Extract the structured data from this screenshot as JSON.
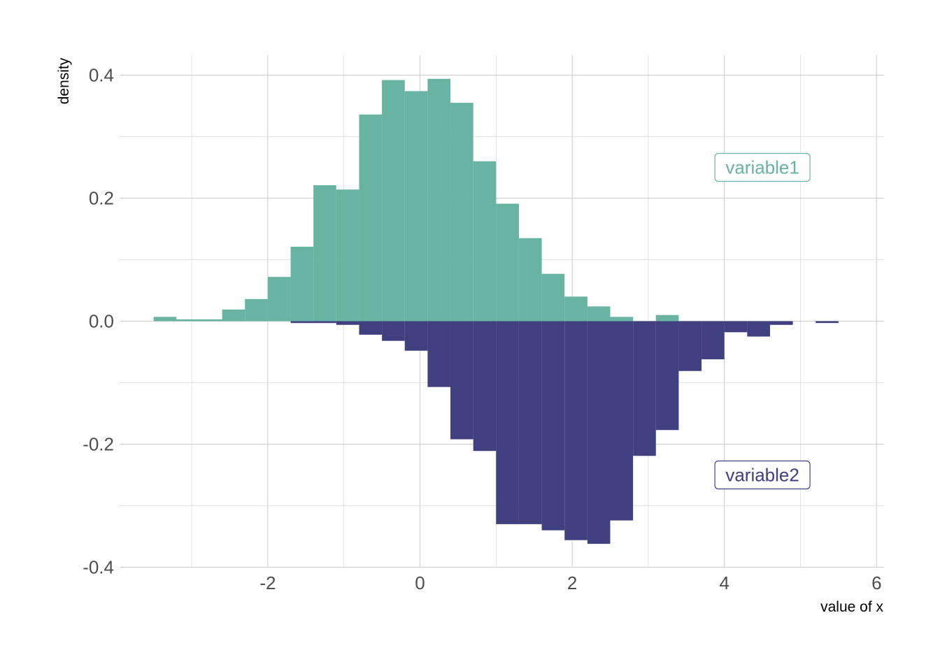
{
  "chart_data": {
    "type": "bar",
    "subtype": "mirror-histogram",
    "title": "",
    "xlabel": "value of x",
    "ylabel": "density",
    "xlim": [
      -3.9,
      6.1
    ],
    "ylim": [
      -0.4,
      0.4
    ],
    "x_ticks": [
      -2,
      0,
      2,
      4,
      6
    ],
    "x_tick_labels": [
      "-2",
      "0",
      "2",
      "4",
      "6"
    ],
    "y_ticks": [
      -0.4,
      -0.2,
      0.0,
      0.2,
      0.4
    ],
    "y_tick_labels": [
      "-0.4",
      "-0.2",
      "0.0",
      "0.2",
      "0.4"
    ],
    "grid": true,
    "legend": "none",
    "series": [
      {
        "name": "variable1",
        "direction": "up",
        "color": "#69b3a2",
        "bins": [
          {
            "x0": -3.5,
            "x1": -3.2,
            "value": 0.007
          },
          {
            "x0": -3.2,
            "x1": -2.9,
            "value": 0.003
          },
          {
            "x0": -2.9,
            "x1": -2.6,
            "value": 0.003
          },
          {
            "x0": -2.6,
            "x1": -2.3,
            "value": 0.019
          },
          {
            "x0": -2.3,
            "x1": -2.0,
            "value": 0.036
          },
          {
            "x0": -2.0,
            "x1": -1.7,
            "value": 0.072
          },
          {
            "x0": -1.7,
            "x1": -1.4,
            "value": 0.121
          },
          {
            "x0": -1.4,
            "x1": -1.1,
            "value": 0.221
          },
          {
            "x0": -1.1,
            "x1": -0.8,
            "value": 0.214
          },
          {
            "x0": -0.8,
            "x1": -0.5,
            "value": 0.336
          },
          {
            "x0": -0.5,
            "x1": -0.2,
            "value": 0.392
          },
          {
            "x0": -0.2,
            "x1": 0.1,
            "value": 0.374
          },
          {
            "x0": 0.1,
            "x1": 0.4,
            "value": 0.394
          },
          {
            "x0": 0.4,
            "x1": 0.7,
            "value": 0.355
          },
          {
            "x0": 0.7,
            "x1": 1.0,
            "value": 0.26
          },
          {
            "x0": 1.0,
            "x1": 1.3,
            "value": 0.191
          },
          {
            "x0": 1.3,
            "x1": 1.6,
            "value": 0.135
          },
          {
            "x0": 1.6,
            "x1": 1.9,
            "value": 0.077
          },
          {
            "x0": 1.9,
            "x1": 2.2,
            "value": 0.04
          },
          {
            "x0": 2.2,
            "x1": 2.5,
            "value": 0.024
          },
          {
            "x0": 2.5,
            "x1": 2.8,
            "value": 0.007
          },
          {
            "x0": 3.1,
            "x1": 3.4,
            "value": 0.01
          }
        ]
      },
      {
        "name": "variable2",
        "direction": "down",
        "color": "#404080",
        "bins": [
          {
            "x0": -1.7,
            "x1": -1.1,
            "value": -0.003
          },
          {
            "x0": -1.1,
            "x1": -0.8,
            "value": -0.006
          },
          {
            "x0": -0.8,
            "x1": -0.5,
            "value": -0.022
          },
          {
            "x0": -0.5,
            "x1": -0.2,
            "value": -0.032
          },
          {
            "x0": -0.2,
            "x1": 0.1,
            "value": -0.048
          },
          {
            "x0": 0.1,
            "x1": 0.4,
            "value": -0.107
          },
          {
            "x0": 0.4,
            "x1": 0.7,
            "value": -0.192
          },
          {
            "x0": 0.7,
            "x1": 1.0,
            "value": -0.211
          },
          {
            "x0": 1.0,
            "x1": 1.3,
            "value": -0.33
          },
          {
            "x0": 1.3,
            "x1": 1.6,
            "value": -0.33
          },
          {
            "x0": 1.6,
            "x1": 1.9,
            "value": -0.34
          },
          {
            "x0": 1.9,
            "x1": 2.2,
            "value": -0.356
          },
          {
            "x0": 2.2,
            "x1": 2.5,
            "value": -0.362
          },
          {
            "x0": 2.5,
            "x1": 2.8,
            "value": -0.324
          },
          {
            "x0": 2.8,
            "x1": 3.1,
            "value": -0.219
          },
          {
            "x0": 3.1,
            "x1": 3.4,
            "value": -0.177
          },
          {
            "x0": 3.4,
            "x1": 3.7,
            "value": -0.081
          },
          {
            "x0": 3.7,
            "x1": 4.0,
            "value": -0.062
          },
          {
            "x0": 4.0,
            "x1": 4.3,
            "value": -0.018
          },
          {
            "x0": 4.3,
            "x1": 4.6,
            "value": -0.025
          },
          {
            "x0": 4.6,
            "x1": 4.9,
            "value": -0.006
          },
          {
            "x0": 5.2,
            "x1": 5.5,
            "value": -0.003
          }
        ]
      }
    ],
    "annotations": [
      {
        "text": "variable1",
        "x": 4.5,
        "y": 0.25,
        "color": "#69b3a2"
      },
      {
        "text": "variable2",
        "x": 4.5,
        "y": -0.25,
        "color": "#404080"
      }
    ]
  }
}
